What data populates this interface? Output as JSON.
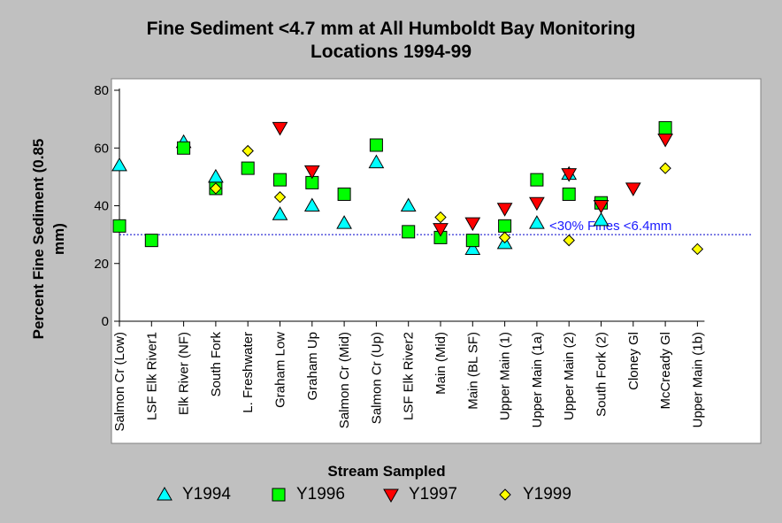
{
  "title_line1": "Fine Sediment <4.7 mm at All Humboldt Bay Monitoring",
  "title_line2": "Locations 1994-99",
  "chart_data": {
    "type": "scatter",
    "title": "Fine Sediment <4.7 mm at All Humboldt Bay Monitoring Locations 1994-99",
    "xlabel": "Stream Sampled",
    "ylabel_line1": "Percent Fine Sediment (0.85",
    "ylabel_line2": "mm)",
    "ylim": [
      0,
      80
    ],
    "yticks": [
      "0",
      "20",
      "40",
      "60",
      "80"
    ],
    "grid": false,
    "legend_position": "bottom",
    "categories": [
      "Salmon Cr (Low)",
      "LSF Elk River1",
      "Elk River (NF)",
      "South Fork",
      "L. Freshwater",
      "Graham Low",
      "Graham Up",
      "Salmon Cr (Mid)",
      "Salmon Cr (Up)",
      "LSF Elk River2",
      "Main (Mid)",
      "Main (BL SF)",
      "Upper Main (1)",
      "Upper Main (1a)",
      "Upper Main (2)",
      "South Fork (2)",
      "Cloney Gl",
      "McCready Gl",
      "Upper Main (1b)"
    ],
    "reference_line": {
      "value": 30,
      "label": "<30% Fines <6.4mm",
      "color": "#0000cc"
    },
    "series": [
      {
        "name": "Y1994",
        "marker": "triangle-up",
        "color": "#00ffff",
        "values": [
          54,
          null,
          62,
          50,
          null,
          37,
          40,
          34,
          55,
          40,
          null,
          25,
          27,
          34,
          51,
          35,
          null,
          null,
          null
        ]
      },
      {
        "name": "Y1996",
        "marker": "square",
        "color": "#00ff00",
        "values": [
          33,
          28,
          60,
          46,
          53,
          49,
          48,
          44,
          61,
          31,
          29,
          28,
          33,
          49,
          44,
          41,
          null,
          67,
          null
        ]
      },
      {
        "name": "Y1997",
        "marker": "triangle-down",
        "color": "#ff0000",
        "values": [
          null,
          null,
          null,
          null,
          null,
          67,
          52,
          null,
          null,
          null,
          32,
          34,
          39,
          41,
          51,
          40,
          46,
          63,
          null
        ]
      },
      {
        "name": "Y1999",
        "marker": "diamond",
        "color": "#ffff00",
        "values": [
          null,
          null,
          null,
          46,
          59,
          43,
          null,
          null,
          null,
          null,
          36,
          null,
          29,
          null,
          28,
          null,
          null,
          53,
          25
        ]
      }
    ]
  }
}
